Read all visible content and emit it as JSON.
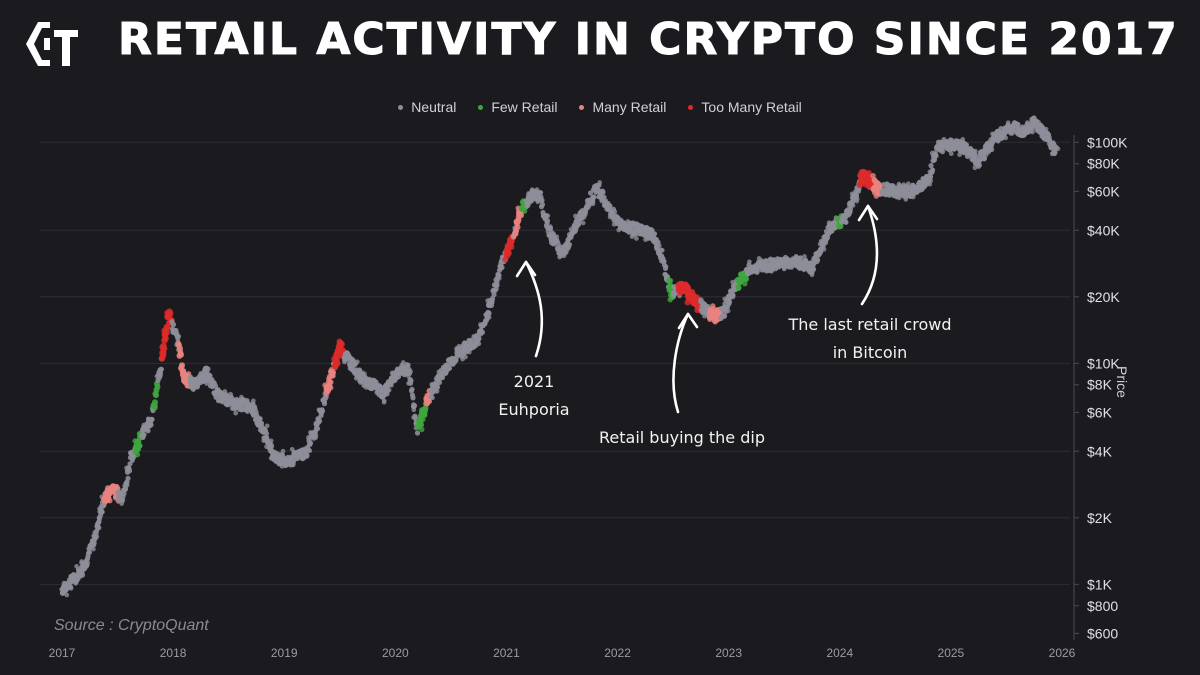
{
  "header": {
    "title": "Retail Activity in Crypto Since 2017",
    "logo_icon": "cq-logo-icon"
  },
  "source": "Source : CryptoQuant",
  "annotations": [
    {
      "id": "euphoria",
      "lines": [
        "2021",
        "Euhporia"
      ]
    },
    {
      "id": "dip",
      "lines": [
        "Retail buying the dip"
      ]
    },
    {
      "id": "last",
      "lines": [
        "The last retail crowd",
        "in Bitcoin"
      ]
    }
  ],
  "chart_data": {
    "type": "scatter",
    "title": "Retail Activity in Crypto Since 2017",
    "ylabel": "Price",
    "y_scale": "log",
    "ylim": [
      560,
      140000
    ],
    "xlim": [
      2017.0,
      2026.0
    ],
    "x_ticks": [
      "2017",
      "2018",
      "2019",
      "2020",
      "2021",
      "2022",
      "2023",
      "2024",
      "2025",
      "2026"
    ],
    "y_ticks": [
      {
        "value": 600,
        "label": "$600"
      },
      {
        "value": 800,
        "label": "$800"
      },
      {
        "value": 1000,
        "label": "$1K"
      },
      {
        "value": 2000,
        "label": "$2K"
      },
      {
        "value": 4000,
        "label": "$4K"
      },
      {
        "value": 6000,
        "label": "$6K"
      },
      {
        "value": 8000,
        "label": "$8K"
      },
      {
        "value": 10000,
        "label": "$10K"
      },
      {
        "value": 20000,
        "label": "$20K"
      },
      {
        "value": 40000,
        "label": "$40K"
      },
      {
        "value": 60000,
        "label": "$60K"
      },
      {
        "value": 80000,
        "label": "$80K"
      },
      {
        "value": 100000,
        "label": "$100K"
      }
    ],
    "grid": true,
    "legend_position": "top-center",
    "series": [
      {
        "name": "Neutral",
        "color": "#8e8e9a"
      },
      {
        "name": "Few Retail",
        "color": "#3fa63f"
      },
      {
        "name": "Many Retail",
        "color": "#e8837f"
      },
      {
        "name": "Too Many Retail",
        "color": "#dd2a2a"
      }
    ],
    "price_path": [
      [
        2017.0,
        950
      ],
      [
        2017.1,
        1050
      ],
      [
        2017.2,
        1180
      ],
      [
        2017.3,
        1700
      ],
      [
        2017.38,
        2400
      ],
      [
        2017.45,
        2700
      ],
      [
        2017.55,
        2500
      ],
      [
        2017.62,
        3700
      ],
      [
        2017.7,
        4500
      ],
      [
        2017.8,
        5500
      ],
      [
        2017.88,
        9000
      ],
      [
        2017.96,
        17000
      ],
      [
        2018.05,
        12000
      ],
      [
        2018.1,
        8500
      ],
      [
        2018.2,
        8000
      ],
      [
        2018.3,
        9000
      ],
      [
        2018.4,
        7200
      ],
      [
        2018.55,
        6500
      ],
      [
        2018.7,
        6500
      ],
      [
        2018.85,
        4500
      ],
      [
        2018.92,
        3700
      ],
      [
        2019.05,
        3600
      ],
      [
        2019.2,
        4000
      ],
      [
        2019.3,
        5300
      ],
      [
        2019.4,
        8000
      ],
      [
        2019.5,
        12000
      ],
      [
        2019.58,
        10500
      ],
      [
        2019.7,
        8500
      ],
      [
        2019.8,
        8000
      ],
      [
        2019.9,
        7300
      ],
      [
        2020.0,
        9000
      ],
      [
        2020.12,
        9500
      ],
      [
        2020.2,
        5000
      ],
      [
        2020.3,
        7000
      ],
      [
        2020.45,
        9500
      ],
      [
        2020.6,
        11500
      ],
      [
        2020.75,
        13000
      ],
      [
        2020.85,
        18000
      ],
      [
        2020.95,
        28000
      ],
      [
        2021.05,
        35000
      ],
      [
        2021.12,
        48000
      ],
      [
        2021.2,
        56000
      ],
      [
        2021.3,
        58000
      ],
      [
        2021.38,
        40000
      ],
      [
        2021.48,
        32000
      ],
      [
        2021.55,
        34000
      ],
      [
        2021.65,
        45000
      ],
      [
        2021.75,
        55000
      ],
      [
        2021.82,
        63000
      ],
      [
        2021.92,
        50000
      ],
      [
        2022.05,
        42000
      ],
      [
        2022.2,
        40000
      ],
      [
        2022.32,
        38000
      ],
      [
        2022.4,
        30000
      ],
      [
        2022.48,
        21000
      ],
      [
        2022.6,
        22000
      ],
      [
        2022.7,
        19500
      ],
      [
        2022.85,
        16500
      ],
      [
        2022.95,
        16800
      ],
      [
        2023.05,
        22000
      ],
      [
        2023.2,
        27000
      ],
      [
        2023.4,
        28000
      ],
      [
        2023.6,
        29000
      ],
      [
        2023.75,
        27000
      ],
      [
        2023.9,
        40000
      ],
      [
        2024.05,
        45000
      ],
      [
        2024.2,
        70000
      ],
      [
        2024.35,
        62000
      ],
      [
        2024.5,
        60000
      ],
      [
        2024.65,
        60000
      ],
      [
        2024.8,
        68000
      ],
      [
        2024.88,
        95000
      ],
      [
        2024.98,
        97000
      ],
      [
        2025.1,
        96000
      ],
      [
        2025.25,
        82000
      ],
      [
        2025.4,
        105000
      ],
      [
        2025.55,
        118000
      ],
      [
        2025.65,
        112000
      ],
      [
        2025.75,
        123000
      ],
      [
        2025.85,
        108000
      ],
      [
        2025.95,
        90000
      ]
    ],
    "highlight_windows": [
      {
        "x": [
          2017.38,
          2017.5
        ],
        "category": "Many Retail"
      },
      {
        "x": [
          2017.66,
          2017.72
        ],
        "category": "Few Retail"
      },
      {
        "x": [
          2017.82,
          2017.86
        ],
        "category": "Few Retail"
      },
      {
        "x": [
          2017.9,
          2017.99
        ],
        "category": "Too Many Retail"
      },
      {
        "x": [
          2018.05,
          2018.15
        ],
        "category": "Many Retail"
      },
      {
        "x": [
          2019.38,
          2019.44
        ],
        "category": "Many Retail"
      },
      {
        "x": [
          2019.45,
          2019.54
        ],
        "category": "Too Many Retail"
      },
      {
        "x": [
          2020.2,
          2020.28
        ],
        "category": "Few Retail"
      },
      {
        "x": [
          2020.28,
          2020.32
        ],
        "category": "Many Retail"
      },
      {
        "x": [
          2021.0,
          2021.06
        ],
        "category": "Too Many Retail"
      },
      {
        "x": [
          2021.08,
          2021.14
        ],
        "category": "Many Retail"
      },
      {
        "x": [
          2021.14,
          2021.18
        ],
        "category": "Few Retail"
      },
      {
        "x": [
          2022.46,
          2022.5
        ],
        "category": "Few Retail"
      },
      {
        "x": [
          2022.55,
          2022.75
        ],
        "category": "Too Many Retail"
      },
      {
        "x": [
          2022.83,
          2022.93
        ],
        "category": "Many Retail"
      },
      {
        "x": [
          2023.08,
          2023.16
        ],
        "category": "Few Retail"
      },
      {
        "x": [
          2023.98,
          2024.02
        ],
        "category": "Few Retail"
      },
      {
        "x": [
          2024.18,
          2024.3
        ],
        "category": "Too Many Retail"
      },
      {
        "x": [
          2024.3,
          2024.38
        ],
        "category": "Many Retail"
      }
    ]
  }
}
